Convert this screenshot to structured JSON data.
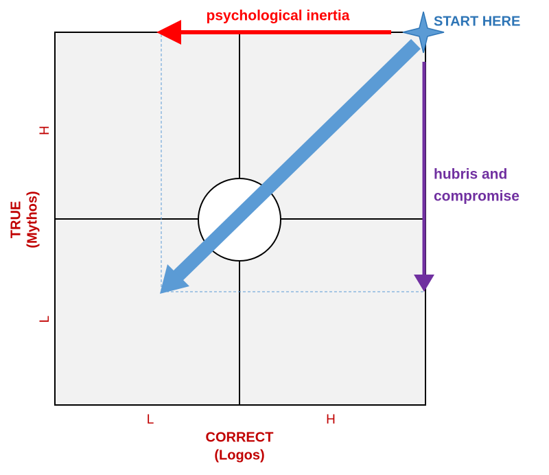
{
  "top_label": "psychological inertia",
  "start_label": "START HERE",
  "side_label": [
    "hubris and",
    "compromise"
  ],
  "y_axis": {
    "title": [
      "TRUE",
      "(Mythos)"
    ],
    "high": "H",
    "low": "L"
  },
  "x_axis": {
    "title": [
      "CORRECT",
      "(Logos)"
    ],
    "low": "L",
    "high": "H"
  }
}
